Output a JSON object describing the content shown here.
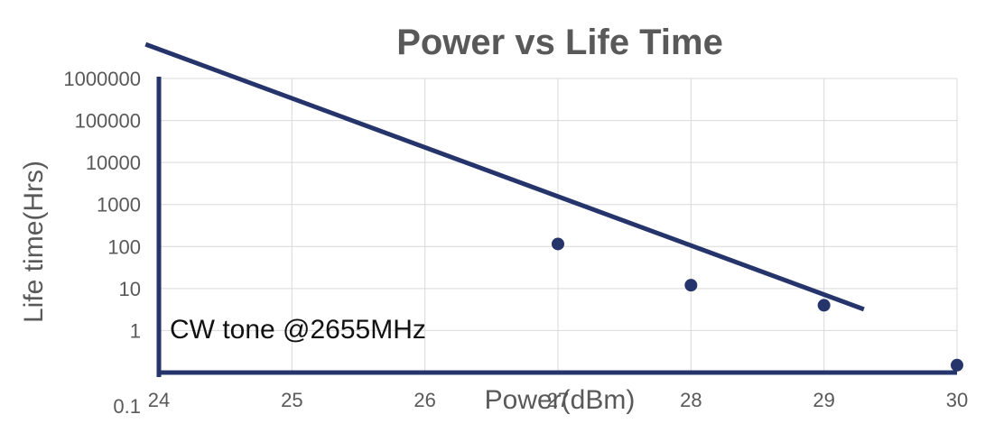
{
  "chart_data": {
    "type": "scatter",
    "title": "Power vs Life Time",
    "xlabel": "Power(dBm)",
    "ylabel": "Life time(Hrs)",
    "x_ticks": [
      "24",
      "25",
      "26",
      "27",
      "28",
      "29",
      "30"
    ],
    "y_ticks": [
      "0.1",
      "1",
      "10",
      "100",
      "1000",
      "10000",
      "100000",
      "1000000"
    ],
    "xlim": [
      24,
      30
    ],
    "ylim": [
      0.1,
      1000000
    ],
    "y_scale": "log",
    "grid": true,
    "annotation": "CW tone @2655MHz",
    "series": [
      {
        "points": [
          {
            "x": 27,
            "y": 115
          },
          {
            "x": 28,
            "y": 12
          },
          {
            "x": 29,
            "y": 4
          },
          {
            "x": 30,
            "y": 0.15
          }
        ]
      }
    ],
    "trendline": {
      "type": "exponential",
      "from": {
        "x": 23.9,
        "y": 6500000
      },
      "to": {
        "x": 29.3,
        "y": 3.2
      }
    },
    "colors": {
      "series": "#25346b",
      "grid": "#d9d9d9",
      "text": "#595959"
    }
  }
}
